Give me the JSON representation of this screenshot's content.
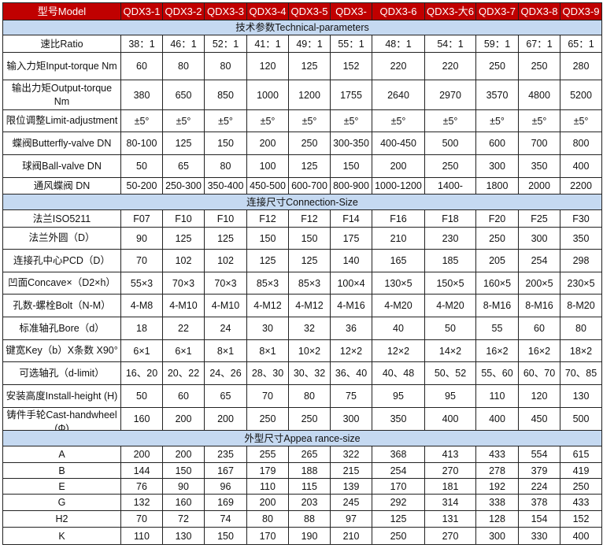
{
  "header": {
    "label": "型号Model",
    "models": [
      "QDX3-1",
      "QDX3-2",
      "QDX3-3",
      "QDX3-4",
      "QDX3-5",
      "QDX3-",
      "QDX3-6",
      "QDX3-大6",
      "QDX3-7",
      "QDX3-8",
      "QDX3-9"
    ]
  },
  "sections": [
    {
      "title": "技术参数Technical-parameters",
      "rows": [
        {
          "label": "速比Ratio",
          "values": [
            "38：1",
            "46：1",
            "52：1",
            "41：1",
            "49：1",
            "55：1",
            "48：1",
            "54：1",
            "59：1",
            "67：1",
            "65：1"
          ]
        },
        {
          "label": "输入力矩Input-torque Nm",
          "values": [
            "60",
            "80",
            "80",
            "120",
            "125",
            "152",
            "220",
            "220",
            "250",
            "250",
            "280"
          ]
        },
        {
          "label": "输出力矩Output-torque Nm",
          "values": [
            "380",
            "650",
            "850",
            "1000",
            "1200",
            "1755",
            "2640",
            "2970",
            "3570",
            "4800",
            "5200"
          ]
        },
        {
          "label": "限位调整Limit-adjustment",
          "values": [
            "±5°",
            "±5°",
            "±5°",
            "±5°",
            "±5°",
            "±5°",
            "±5°",
            "±5°",
            "±5°",
            "±5°",
            "±5°"
          ]
        },
        {
          "label": "蝶阀Butterfly-valve DN",
          "values": [
            "80-100",
            "125",
            "150",
            "200",
            "250",
            "300-350",
            "400-450",
            "500",
            "600",
            "700",
            "800"
          ]
        },
        {
          "label": "球阀Ball-valve DN",
          "values": [
            "50",
            "65",
            "80",
            "100",
            "125",
            "150",
            "200",
            "250",
            "300",
            "350",
            "400"
          ]
        },
        {
          "label": "通风蝶阀  DN",
          "values": [
            "50-200",
            "250-300",
            "350-400",
            "450-500",
            "600-700",
            "800-900",
            "1000-1200",
            "1400-",
            "1800",
            "2000",
            "2200"
          ]
        }
      ]
    },
    {
      "title": "连接尺寸Connection-Size",
      "rows": [
        {
          "label": "法兰ISO5211",
          "values": [
            "F07",
            "F10",
            "F10",
            "F12",
            "F12",
            "F14",
            "F16",
            "F18",
            "F20",
            "F25",
            "F30"
          ]
        },
        {
          "label": "法兰外圆（D）",
          "values": [
            "90",
            "125",
            "125",
            "150",
            "150",
            "175",
            "210",
            "230",
            "250",
            "300",
            "350"
          ]
        },
        {
          "label": "连接孔中心PCD（D）",
          "values": [
            "70",
            "102",
            "102",
            "125",
            "125",
            "140",
            "165",
            "185",
            "205",
            "254",
            "298"
          ]
        },
        {
          "label": "凹面Concave×（D2×h）",
          "values": [
            "55×3",
            "70×3",
            "70×3",
            "85×3",
            "85×3",
            "100×4",
            "130×5",
            "150×5",
            "160×5",
            "200×5",
            "230×5"
          ]
        },
        {
          "label": "孔数-螺栓Bolt（N-M）",
          "values": [
            "4-M8",
            "4-M10",
            "4-M10",
            "4-M12",
            "4-M12",
            "4-M16",
            "4-M20",
            "4-M20",
            "8-M16",
            "8-M16",
            "8-M20"
          ]
        },
        {
          "label": "标准轴孔Bore（d）",
          "values": [
            "18",
            "22",
            "24",
            "30",
            "32",
            "36",
            "40",
            "50",
            "55",
            "60",
            "80"
          ]
        },
        {
          "label": "键宽Key（b）X条数 X90°",
          "values": [
            "6×1",
            "6×1",
            "8×1",
            "8×1",
            "10×2",
            "12×2",
            "12×2",
            "14×2",
            "16×2",
            "16×2",
            "18×2"
          ]
        },
        {
          "label": "可选轴孔（d-limit）",
          "values": [
            "16、20",
            "20、22",
            "24、26",
            "28、30",
            "30、32",
            "36、40",
            "40、48",
            "50、52",
            "55、60",
            "60、70",
            "70、85"
          ]
        },
        {
          "label": "安装高度Install-height (H)",
          "values": [
            "50",
            "60",
            "65",
            "70",
            "80",
            "75",
            "95",
            "95",
            "110",
            "120",
            "130"
          ]
        },
        {
          "label": "铸件手轮Cast-handwheel (Φ)",
          "values": [
            "160",
            "200",
            "200",
            "250",
            "250",
            "300",
            "350",
            "400",
            "400",
            "450",
            "500"
          ]
        }
      ]
    },
    {
      "title": "外型尺寸Appea rance-size",
      "rows": [
        {
          "label": "A",
          "values": [
            "200",
            "200",
            "235",
            "255",
            "265",
            "322",
            "368",
            "413",
            "433",
            "554",
            "615"
          ]
        },
        {
          "label": "B",
          "values": [
            "144",
            "150",
            "167",
            "179",
            "188",
            "215",
            "254",
            "270",
            "278",
            "379",
            "419"
          ]
        },
        {
          "label": "E",
          "values": [
            "76",
            "90",
            "96",
            "110",
            "115",
            "139",
            "170",
            "181",
            "192",
            "224",
            "250"
          ]
        },
        {
          "label": "G",
          "values": [
            "132",
            "160",
            "169",
            "200",
            "203",
            "245",
            "292",
            "314",
            "338",
            "378",
            "433"
          ]
        },
        {
          "label": "H2",
          "values": [
            "70",
            "72",
            "74",
            "80",
            "88",
            "97",
            "125",
            "131",
            "128",
            "154",
            "152"
          ]
        },
        {
          "label": "K",
          "values": [
            "110",
            "130",
            "150",
            "170",
            "190",
            "210",
            "250",
            "270",
            "300",
            "330",
            "400"
          ]
        }
      ]
    }
  ],
  "colors": {
    "header_bg": "#c00000",
    "section_bg": "#c5d9f1"
  }
}
